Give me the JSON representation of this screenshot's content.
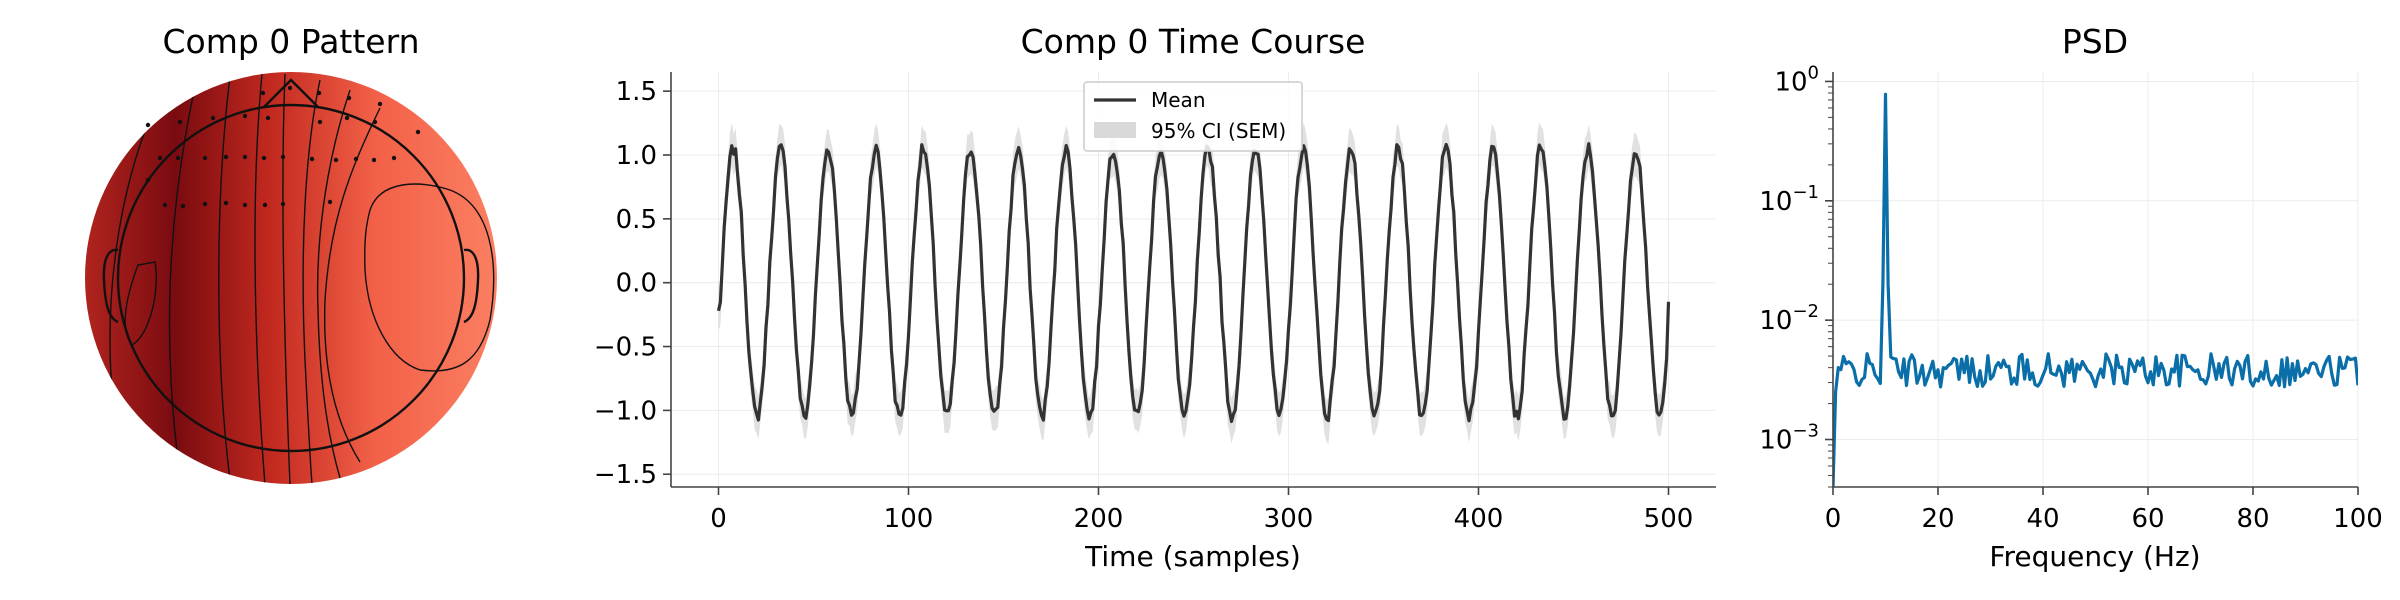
{
  "topomap": {
    "title": "Comp 0 Pattern"
  },
  "chart_data": [
    {
      "type": "line",
      "title": "Comp 0 Time Course",
      "xlabel": "Time (samples)",
      "ylabel": "",
      "xlim": [
        -25,
        525
      ],
      "ylim": [
        -1.6,
        1.65
      ],
      "xticks": [
        0,
        100,
        200,
        300,
        400,
        500
      ],
      "yticks": [
        -1.5,
        -1.0,
        -0.5,
        0.0,
        0.5,
        1.0,
        1.5
      ],
      "xtick_labels": [
        "0",
        "100",
        "200",
        "300",
        "400",
        "500"
      ],
      "ytick_labels": [
        "−1.5",
        "−1.0",
        "−0.5",
        "0.0",
        "0.5",
        "1.0",
        "1.5"
      ],
      "grid": true,
      "legend_position": "top-center",
      "series": [
        {
          "name": "Mean",
          "kind": "line",
          "color": "#333333",
          "n_points": 501,
          "period_samples": 25,
          "amplitude": 1.05,
          "start_value": -0.22,
          "end_value": -0.15
        },
        {
          "name": "95% CI (SEM)",
          "kind": "band",
          "color": "#d9d9d9",
          "half_width": 0.15
        }
      ]
    },
    {
      "type": "line",
      "title": "PSD",
      "xlabel": "Frequency (Hz)",
      "ylabel": "",
      "xlim": [
        0,
        100
      ],
      "ylim": [
        0.0004,
        1.2
      ],
      "yscale": "log",
      "xticks": [
        0,
        20,
        40,
        60,
        80,
        100
      ],
      "xtick_labels": [
        "0",
        "20",
        "40",
        "60",
        "80",
        "100"
      ],
      "yticks": [
        0.001,
        0.01,
        0.1,
        1
      ],
      "ytick_labels": [
        [
          "10",
          "−3"
        ],
        [
          "10",
          "−2"
        ],
        [
          "10",
          "−1"
        ],
        [
          "10",
          "0"
        ]
      ],
      "grid": true,
      "series": [
        {
          "name": "",
          "color": "#0a6ea8",
          "peak_frequency": 10,
          "peak_value": 0.78,
          "baseline_value": 0.0038,
          "start_value": 0.0004
        }
      ]
    }
  ]
}
